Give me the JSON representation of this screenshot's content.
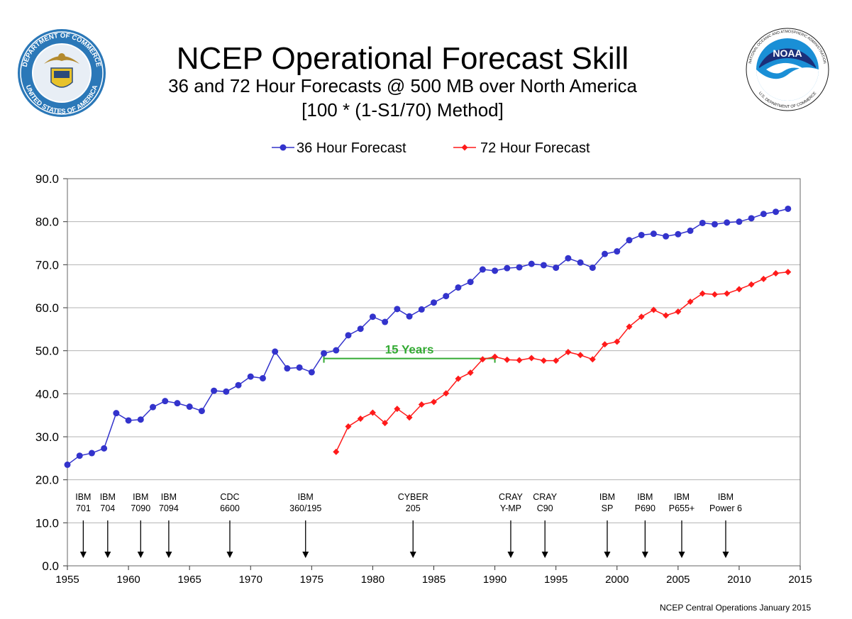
{
  "header": {
    "title": "NCEP Operational Forecast Skill",
    "subtitle": "36 and 72 Hour Forecasts @ 500 MB over North America",
    "subtitle2": "[100 * (1-S1/70) Method]"
  },
  "logos": {
    "left": {
      "name": "department-of-commerce-seal",
      "text": "DEPARTMENT OF COMMERCE • UNITED STATES OF AMERICA"
    },
    "right": {
      "name": "noaa-logo",
      "text": "NOAA",
      "ring_text": "NATIONAL OCEANIC AND ATMOSPHERIC ADMINISTRATION • U.S. DEPARTMENT OF COMMERCE"
    }
  },
  "credit": "NCEP Central Operations January 2015",
  "colors": {
    "series36": "#3333cc",
    "series72": "#ff1a1a",
    "annotation": "#33aa33"
  },
  "chart_data": {
    "type": "line",
    "title": "NCEP Operational Forecast Skill",
    "xlim": [
      1955,
      2015
    ],
    "ylim": [
      0,
      90
    ],
    "xticks": [
      1955,
      1960,
      1965,
      1970,
      1975,
      1980,
      1985,
      1990,
      1995,
      2000,
      2005,
      2010,
      2015
    ],
    "yticks": [
      "0.0",
      "10.0",
      "20.0",
      "30.0",
      "40.0",
      "50.0",
      "60.0",
      "70.0",
      "80.0",
      "90.0"
    ],
    "grid": "horizontal",
    "legend": "top",
    "series": [
      {
        "name": "36 Hour Forecast",
        "marker": "circle",
        "x": [
          1955,
          1956,
          1957,
          1958,
          1959,
          1960,
          1961,
          1962,
          1963,
          1964,
          1965,
          1966,
          1967,
          1968,
          1969,
          1970,
          1971,
          1972,
          1973,
          1974,
          1975,
          1976,
          1977,
          1978,
          1979,
          1980,
          1981,
          1982,
          1983,
          1984,
          1985,
          1986,
          1987,
          1988,
          1989,
          1990,
          1991,
          1992,
          1993,
          1994,
          1995,
          1996,
          1997,
          1998,
          1999,
          2000,
          2001,
          2002,
          2003,
          2004,
          2005,
          2006,
          2007,
          2008,
          2009,
          2010,
          2011,
          2012,
          2013,
          2014
        ],
        "values": [
          23.5,
          25.6,
          26.2,
          27.3,
          35.5,
          33.8,
          34.0,
          36.9,
          38.3,
          37.8,
          37.0,
          36.0,
          40.7,
          40.5,
          42.0,
          44.0,
          43.6,
          49.8,
          45.9,
          46.1,
          45.0,
          49.4,
          50.1,
          53.6,
          55.1,
          57.9,
          56.7,
          59.7,
          58.0,
          59.6,
          61.2,
          62.7,
          64.7,
          66.0,
          68.9,
          68.6,
          69.2,
          69.4,
          70.2,
          69.9,
          69.3,
          71.5,
          70.5,
          69.3,
          72.5,
          73.1,
          75.7,
          76.9,
          77.2,
          76.6,
          77.1,
          77.9,
          79.7,
          79.4,
          79.8,
          80.0,
          80.8,
          81.8,
          82.3,
          83.0
        ]
      },
      {
        "name": "72 Hour Forecast",
        "marker": "diamond",
        "x": [
          1977,
          1978,
          1979,
          1980,
          1981,
          1982,
          1983,
          1984,
          1985,
          1986,
          1987,
          1988,
          1989,
          1990,
          1991,
          1992,
          1993,
          1994,
          1995,
          1996,
          1997,
          1998,
          1999,
          2000,
          2001,
          2002,
          2003,
          2004,
          2005,
          2006,
          2007,
          2008,
          2009,
          2010,
          2011,
          2012,
          2013,
          2014
        ],
        "values": [
          26.5,
          32.4,
          34.2,
          35.6,
          33.2,
          36.5,
          34.5,
          37.5,
          38.1,
          40.1,
          43.5,
          44.9,
          48.0,
          48.6,
          47.9,
          47.8,
          48.3,
          47.7,
          47.7,
          49.7,
          49.0,
          48.0,
          51.5,
          52.1,
          55.6,
          57.9,
          59.5,
          58.2,
          59.1,
          61.4,
          63.3,
          63.1,
          63.3,
          64.3,
          65.4,
          66.7,
          68.0,
          68.3
        ]
      }
    ],
    "annotations": [
      {
        "text": "15 Years",
        "x_start": 1976,
        "x_end": 1990,
        "y": 48.2
      }
    ],
    "events": [
      {
        "label": [
          "IBM",
          "701"
        ],
        "x": 1956.3
      },
      {
        "label": [
          "IBM",
          "704"
        ],
        "x": 1958.3
      },
      {
        "label": [
          "IBM",
          "7090"
        ],
        "x": 1961.0
      },
      {
        "label": [
          "IBM",
          "7094"
        ],
        "x": 1963.3
      },
      {
        "label": [
          "CDC",
          "6600"
        ],
        "x": 1968.3
      },
      {
        "label": [
          "IBM",
          "360/195"
        ],
        "x": 1974.5
      },
      {
        "label": [
          "CYBER",
          "205"
        ],
        "x": 1983.3
      },
      {
        "label": [
          "CRAY",
          "Y-MP"
        ],
        "x": 1991.3
      },
      {
        "label": [
          "CRAY",
          "C90"
        ],
        "x": 1994.1
      },
      {
        "label": [
          "IBM",
          "SP"
        ],
        "x": 1999.2
      },
      {
        "label": [
          "IBM",
          "P690"
        ],
        "x": 2002.3
      },
      {
        "label": [
          "IBM",
          "P655+"
        ],
        "x": 2005.3
      },
      {
        "label": [
          "IBM",
          "Power 6"
        ],
        "x": 2008.9
      }
    ]
  }
}
